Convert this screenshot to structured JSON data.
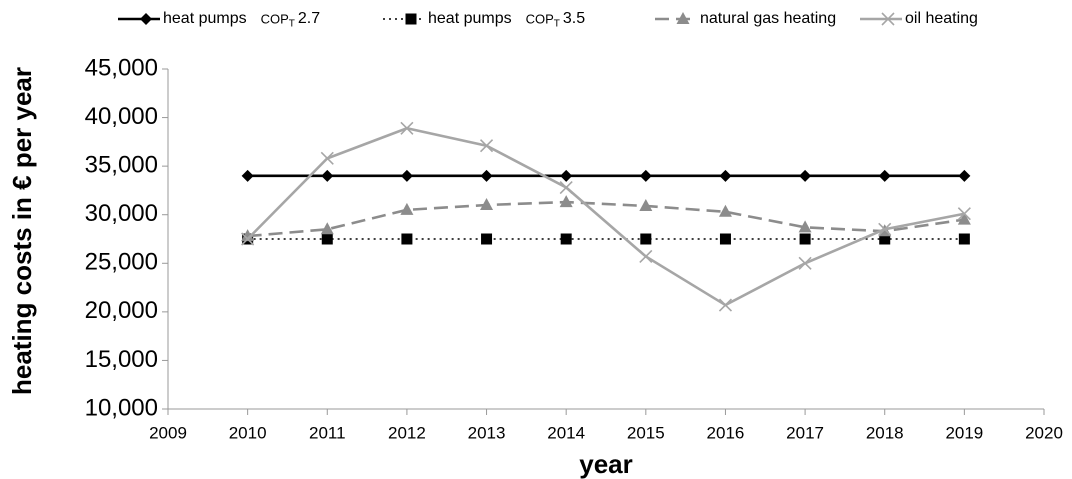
{
  "chart_data": {
    "type": "line",
    "x_label": "year",
    "y_label": "heating costs in € per year",
    "x": [
      2010,
      2011,
      2012,
      2013,
      2014,
      2015,
      2016,
      2017,
      2018,
      2019
    ],
    "xlim": [
      2009,
      2020
    ],
    "xticks": [
      2009,
      2010,
      2011,
      2012,
      2013,
      2014,
      2015,
      2016,
      2017,
      2018,
      2019,
      2020
    ],
    "ylim": [
      10000,
      45000
    ],
    "yticks": [
      {
        "value": 10000,
        "label": "10,000"
      },
      {
        "value": 15000,
        "label": "15,000"
      },
      {
        "value": 20000,
        "label": "20,000"
      },
      {
        "value": 25000,
        "label": "25,000"
      },
      {
        "value": 30000,
        "label": "30,000"
      },
      {
        "value": 35000,
        "label": "35,000"
      },
      {
        "value": 40000,
        "label": "40,000"
      },
      {
        "value": 45000,
        "label": "45,000"
      }
    ],
    "grid": false,
    "legend": "top",
    "series": [
      {
        "name": "heat pumps",
        "cop": {
          "text": "COP",
          "subscript": "T",
          "value": 2.7
        },
        "color": "#000000",
        "dash": "solid",
        "marker": "diamond",
        "values": [
          34000,
          34000,
          34000,
          34000,
          34000,
          34000,
          34000,
          34000,
          34000,
          34000
        ]
      },
      {
        "name": "heat pumps",
        "cop": {
          "text": "COP",
          "subscript": "T",
          "value": 3.5
        },
        "color": "#000000",
        "dash": "dotted",
        "marker": "square",
        "values": [
          27500,
          27500,
          27500,
          27500,
          27500,
          27500,
          27500,
          27500,
          27500,
          27500
        ]
      },
      {
        "name": "natural gas heating",
        "color": "#8c8c8c",
        "dash": "dashed",
        "marker": "triangle",
        "values": [
          27800,
          28500,
          30500,
          31000,
          31300,
          30900,
          30300,
          28700,
          28300,
          29500
        ]
      },
      {
        "name": "oil heating",
        "color": "#a6a6a6",
        "dash": "solid",
        "marker": "x",
        "values": [
          27500,
          35800,
          38900,
          37100,
          32800,
          25700,
          20700,
          25000,
          28500,
          30100
        ]
      }
    ]
  }
}
